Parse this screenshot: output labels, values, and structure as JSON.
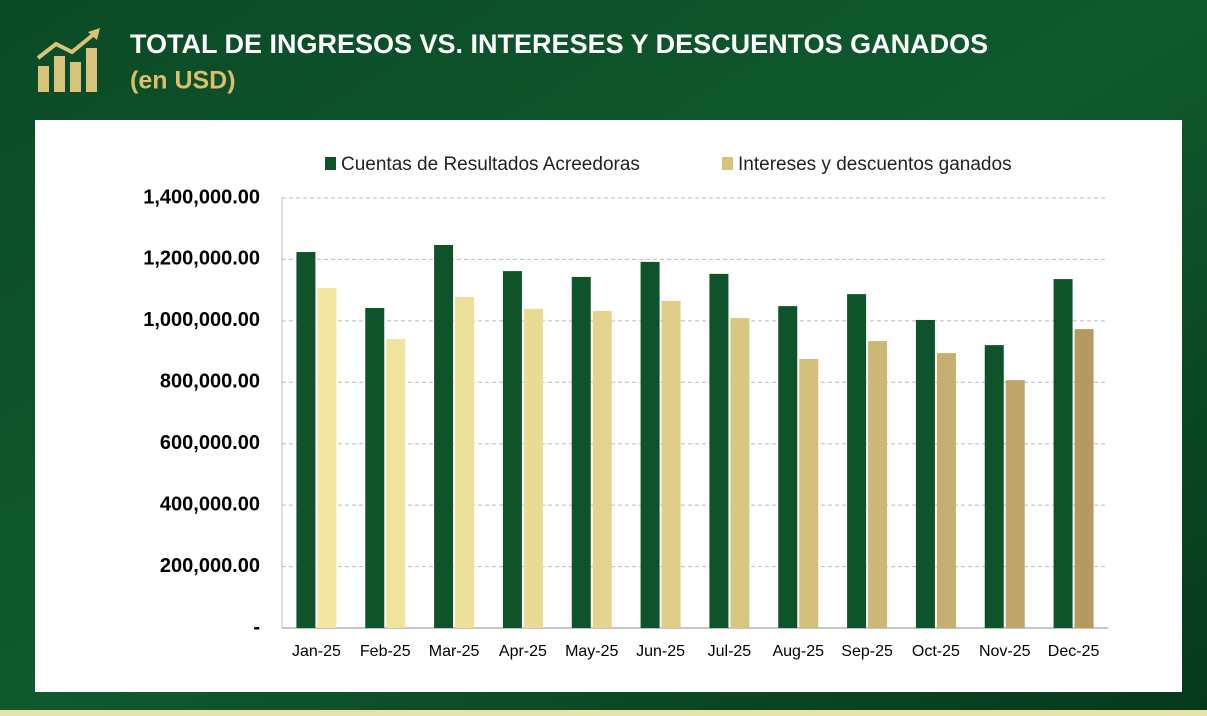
{
  "chart_data": {
    "type": "bar",
    "title": "TOTAL DE INGRESOS VS. INTERESES Y DESCUENTOS GANADOS",
    "subtitle": "(en USD)",
    "categories": [
      "Jan-25",
      "Feb-25",
      "Mar-25",
      "Apr-25",
      "May-25",
      "Jun-25",
      "Jul-25",
      "Aug-25",
      "Sep-25",
      "Oct-25",
      "Nov-25",
      "Dec-25"
    ],
    "series": [
      {
        "name": "Cuentas de Resultados Acreedoras",
        "color": "#0e5329",
        "values": [
          1224000,
          1042000,
          1247000,
          1162000,
          1143000,
          1192000,
          1153000,
          1048000,
          1087000,
          1003000,
          921000,
          1136000
        ]
      },
      {
        "name": "Intereses y descuentos ganados",
        "color": "#d9c27a",
        "colors": [
          "#f2e6a2",
          "#f0e39e",
          "#ede09a",
          "#e9da94",
          "#e5d48e",
          "#dfcd88",
          "#d9c682",
          "#d3bf7c",
          "#cdb776",
          "#c6ae70",
          "#bea469",
          "#b59961"
        ],
        "values": [
          1107000,
          941000,
          1078000,
          1039000,
          1032000,
          1065000,
          1009000,
          876000,
          934000,
          895000,
          807000,
          973000
        ]
      }
    ],
    "ylim": [
      0,
      1400000
    ],
    "yticks": [
      {
        "value": 0,
        "label": "-"
      },
      {
        "value": 200000,
        "label": "200,000.00"
      },
      {
        "value": 400000,
        "label": "400,000.00"
      },
      {
        "value": 600000,
        "label": "600,000.00"
      },
      {
        "value": 800000,
        "label": "800,000.00"
      },
      {
        "value": 1000000,
        "label": "1,000,000.00"
      },
      {
        "value": 1200000,
        "label": "1,200,000.00"
      },
      {
        "value": 1400000,
        "label": "1,400,000.00"
      }
    ],
    "grid": true,
    "legend": "top"
  }
}
